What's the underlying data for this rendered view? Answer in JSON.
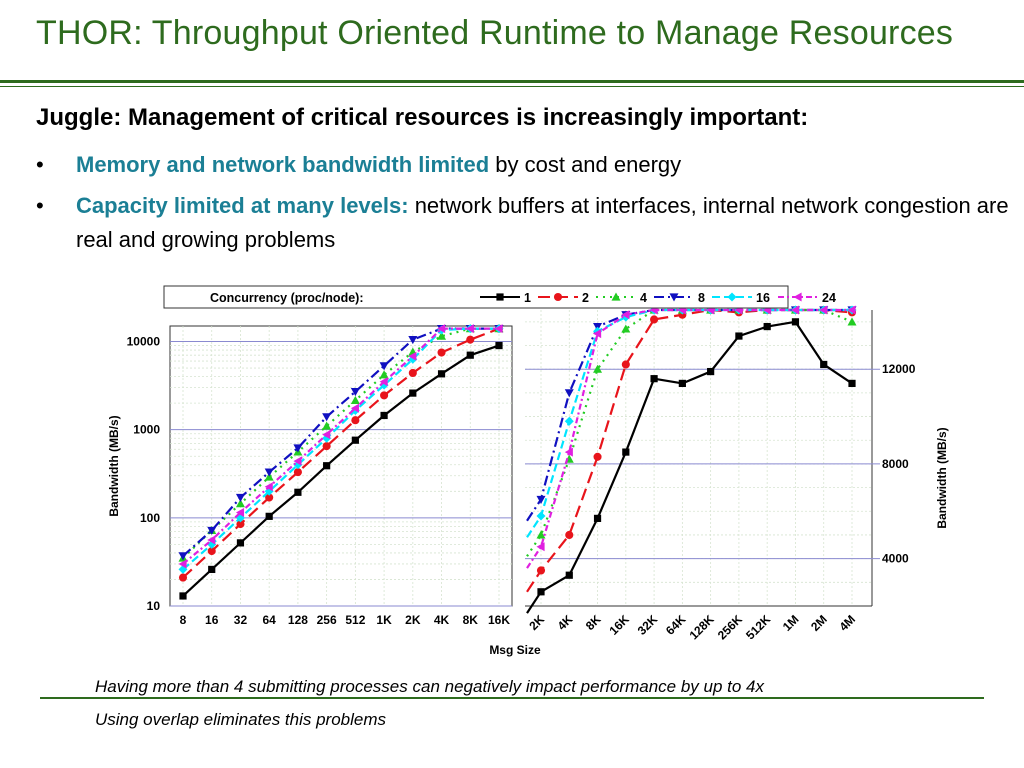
{
  "title": "THOR: Throughput Oriented Runtime to Manage Resources",
  "heading": "Juggle: Management of critical resources is increasingly important:",
  "bullets": [
    {
      "highlight": "Memory and network bandwidth limited",
      "rest": " by cost and energy"
    },
    {
      "highlight": "Capacity limited at many levels:",
      "rest": " network buffers at interfaces, internal network congestion are real and growing problems"
    }
  ],
  "captions": [
    "Having more than 4 submitting processes can negatively impact performance by up to 4x",
    "Using overlap eliminates this problems"
  ],
  "colors": {
    "title": "#2e6b1e",
    "highlight": "#1b7f95"
  },
  "chart_data": [
    {
      "type": "line",
      "title": "",
      "ylabel": "Bandwidth (MB/s)",
      "xlabel": "",
      "yscale": "log",
      "ylim": [
        10,
        15000
      ],
      "categories": [
        "8",
        "16",
        "32",
        "64",
        "128",
        "256",
        "512",
        "1K",
        "2K",
        "4K",
        "8K",
        "16K"
      ],
      "yticks": [
        "10",
        "100",
        "1000",
        "10000"
      ],
      "grid": true,
      "series": [
        {
          "name": "1",
          "color": "#000000",
          "marker": "square",
          "dash": "",
          "values": [
            13,
            26,
            52,
            104,
            195,
            390,
            760,
            1450,
            2600,
            4300,
            7000,
            9000
          ]
        },
        {
          "name": "2",
          "color": "#e8141b",
          "marker": "circle",
          "dash": "12,6",
          "values": [
            21,
            42,
            85,
            170,
            330,
            650,
            1280,
            2450,
            4400,
            7500,
            10500,
            14000
          ]
        },
        {
          "name": "4",
          "color": "#22cc22",
          "marker": "triangle-up",
          "dash": "2,5",
          "values": [
            35,
            72,
            145,
            290,
            560,
            1100,
            2150,
            4200,
            7600,
            11500,
            14000,
            14000
          ]
        },
        {
          "name": "8",
          "color": "#1010c0",
          "marker": "triangle-down",
          "dash": "10,4,2,4",
          "values": [
            37,
            72,
            170,
            330,
            620,
            1400,
            2700,
            5300,
            10500,
            14000,
            14000,
            14000
          ]
        },
        {
          "name": "16",
          "color": "#00e5ff",
          "marker": "diamond",
          "dash": "8,4",
          "values": [
            26,
            50,
            100,
            200,
            400,
            800,
            1650,
            3200,
            6300,
            13500,
            14000,
            14000
          ]
        },
        {
          "name": "24",
          "color": "#e020e0",
          "marker": "triangle-left",
          "dash": "6,3,2,3",
          "values": [
            30,
            56,
            115,
            225,
            440,
            880,
            1750,
            3500,
            6800,
            14000,
            14000,
            14000
          ]
        }
      ]
    },
    {
      "type": "line",
      "title": "",
      "ylabel": "Bandwidth (MB/s)",
      "xlabel": "Msg Size",
      "yscale": "linear",
      "ylim": [
        2000,
        14500
      ],
      "yticks": [
        "4000",
        "8000",
        "12000"
      ],
      "categories": [
        "2K",
        "4K",
        "8K",
        "16K",
        "32K",
        "64K",
        "128K",
        "256K",
        "512K",
        "1M",
        "2M",
        "4M"
      ],
      "grid": true,
      "legend": {
        "label": "Concurrency (proc/node):",
        "position": "top"
      },
      "series": [
        {
          "name": "1",
          "color": "#000000",
          "marker": "square",
          "dash": "",
          "values": [
            2600,
            3300,
            5700,
            8500,
            11600,
            11400,
            11900,
            13400,
            13800,
            14000,
            12200,
            11400
          ]
        },
        {
          "name": "2",
          "color": "#e8141b",
          "marker": "circle",
          "dash": "12,6",
          "values": [
            3500,
            5000,
            8300,
            12200,
            14100,
            14300,
            14500,
            14400,
            14500,
            14500,
            14500,
            14400
          ]
        },
        {
          "name": "4",
          "color": "#22cc22",
          "marker": "triangle-up",
          "dash": "2,5",
          "values": [
            5000,
            8200,
            12000,
            13700,
            14500,
            14500,
            14500,
            14500,
            14500,
            14500,
            14500,
            14000
          ]
        },
        {
          "name": "8",
          "color": "#1010c0",
          "marker": "triangle-down",
          "dash": "10,4,2,4",
          "values": [
            6500,
            11000,
            13800,
            14300,
            14500,
            14500,
            14500,
            14500,
            14500,
            14500,
            14500,
            14500
          ]
        },
        {
          "name": "16",
          "color": "#00e5ff",
          "marker": "diamond",
          "dash": "8,4",
          "values": [
            5800,
            9800,
            13600,
            14200,
            14500,
            14500,
            14500,
            14500,
            14500,
            14500,
            14500,
            14500
          ]
        },
        {
          "name": "24",
          "color": "#e020e0",
          "marker": "triangle-left",
          "dash": "6,3,2,3",
          "values": [
            4500,
            8500,
            13500,
            14300,
            14500,
            14500,
            14500,
            14500,
            14500,
            14500,
            14500,
            14500
          ]
        }
      ]
    }
  ]
}
